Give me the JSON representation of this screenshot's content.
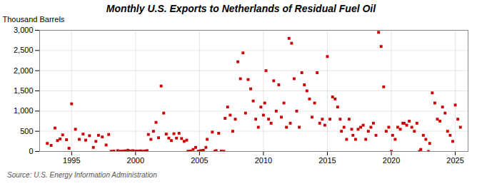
{
  "chart_data": {
    "type": "scatter",
    "title": "Monthly U.S. Exports to Netherlands of Residual Fuel Oil",
    "ylabel": "Thousand Barrels",
    "caption": "Source: U.S. Energy Information Administration",
    "color": "#cc0000",
    "marker": "square",
    "grid": true,
    "xlim": [
      1992.5,
      2026.0
    ],
    "xticks": [
      1995,
      2000,
      2005,
      2010,
      2015,
      2020,
      2025
    ],
    "ylim": [
      0,
      3000
    ],
    "yticks": [
      0,
      500,
      {
        "value": 1000,
        "label": "1,000"
      },
      {
        "value": 1500,
        "label": "1,500"
      },
      {
        "value": 2000,
        "label": "2,000"
      },
      {
        "value": 2500,
        "label": "2,500"
      },
      {
        "value": 3000,
        "label": "3,000"
      }
    ],
    "x": [
      1993.1,
      1993.4,
      1993.7,
      1993.9,
      1994.1,
      1994.3,
      1994.6,
      1994.8,
      1995.0,
      1995.3,
      1995.6,
      1995.9,
      1996.1,
      1996.4,
      1996.7,
      1996.9,
      1997.1,
      1997.4,
      1997.7,
      1997.9,
      1998.1,
      1998.3,
      1998.6,
      1998.8,
      1999.0,
      1999.2,
      1999.4,
      1999.6,
      1999.8,
      2000.0,
      2000.1,
      2000.2,
      2000.4,
      2000.5,
      2000.7,
      2000.9,
      2001.0,
      2001.2,
      2001.4,
      2001.6,
      2001.8,
      2002.0,
      2002.2,
      2002.4,
      2002.6,
      2002.8,
      2003.0,
      2003.2,
      2003.4,
      2003.6,
      2003.8,
      2004.0,
      2004.1,
      2004.3,
      2004.5,
      2004.7,
      2004.9,
      2005.0,
      2005.1,
      2005.2,
      2005.3,
      2005.5,
      2005.6,
      2006.0,
      2006.2,
      2006.3,
      2006.5,
      2006.7,
      2006.9,
      2007.0,
      2007.2,
      2007.4,
      2007.6,
      2007.8,
      2008.0,
      2008.2,
      2008.4,
      2008.6,
      2008.8,
      2009.0,
      2009.2,
      2009.4,
      2009.6,
      2009.8,
      2010.0,
      2010.1,
      2010.2,
      2010.4,
      2010.6,
      2010.8,
      2011.0,
      2011.2,
      2011.4,
      2011.6,
      2011.8,
      2012.0,
      2012.1,
      2012.2,
      2012.4,
      2012.6,
      2012.8,
      2013.0,
      2013.2,
      2013.4,
      2013.6,
      2013.8,
      2014.0,
      2014.2,
      2014.4,
      2014.6,
      2014.8,
      2015.0,
      2015.2,
      2015.4,
      2015.6,
      2015.8,
      2016.0,
      2016.1,
      2016.3,
      2016.5,
      2016.7,
      2016.9,
      2017.0,
      2017.2,
      2017.4,
      2017.6,
      2017.8,
      2018.0,
      2018.2,
      2018.4,
      2018.6,
      2018.8,
      2019.0,
      2019.2,
      2019.4,
      2019.6,
      2019.8,
      2020.0,
      2020.1,
      2020.3,
      2020.5,
      2020.7,
      2020.9,
      2021.0,
      2021.2,
      2021.4,
      2021.6,
      2021.8,
      2022.0,
      2022.2,
      2022.3,
      2022.5,
      2022.7,
      2022.9,
      2023.0,
      2023.2,
      2023.4,
      2023.6,
      2023.8,
      2024.0,
      2024.2,
      2024.4,
      2024.6,
      2024.8,
      2025.0,
      2025.2,
      2025.4
    ],
    "values": [
      200,
      150,
      580,
      270,
      310,
      410,
      290,
      80,
      1180,
      550,
      300,
      430,
      280,
      390,
      100,
      250,
      400,
      360,
      160,
      420,
      5,
      10,
      20,
      5,
      8,
      15,
      30,
      12,
      20,
      5,
      10,
      8,
      15,
      5,
      12,
      20,
      420,
      300,
      500,
      720,
      340,
      1620,
      950,
      430,
      330,
      270,
      440,
      330,
      450,
      320,
      250,
      280,
      5,
      10,
      50,
      100,
      5,
      10,
      20,
      5,
      30,
      100,
      300,
      480,
      5,
      20,
      450,
      10,
      5,
      820,
      1100,
      900,
      500,
      800,
      2220,
      1800,
      2440,
      950,
      1780,
      1550,
      1250,
      800,
      600,
      1100,
      900,
      1200,
      2000,
      800,
      700,
      1750,
      1000,
      1650,
      850,
      1200,
      600,
      2800,
      700,
      2680,
      1800,
      1000,
      600,
      1950,
      1650,
      1500,
      1300,
      850,
      1200,
      1950,
      700,
      800,
      650,
      2350,
      800,
      1350,
      1300,
      1100,
      800,
      500,
      600,
      300,
      800,
      550,
      400,
      300,
      550,
      600,
      650,
      300,
      500,
      600,
      700,
      400,
      2950,
      2600,
      1600,
      500,
      600,
      0,
      400,
      300,
      600,
      550,
      700,
      700,
      650,
      750,
      600,
      500,
      700,
      0,
      50,
      400,
      300,
      0,
      200,
      1450,
      1200,
      800,
      750,
      1100,
      950,
      500,
      400,
      250,
      1150,
      800,
      600
    ]
  }
}
